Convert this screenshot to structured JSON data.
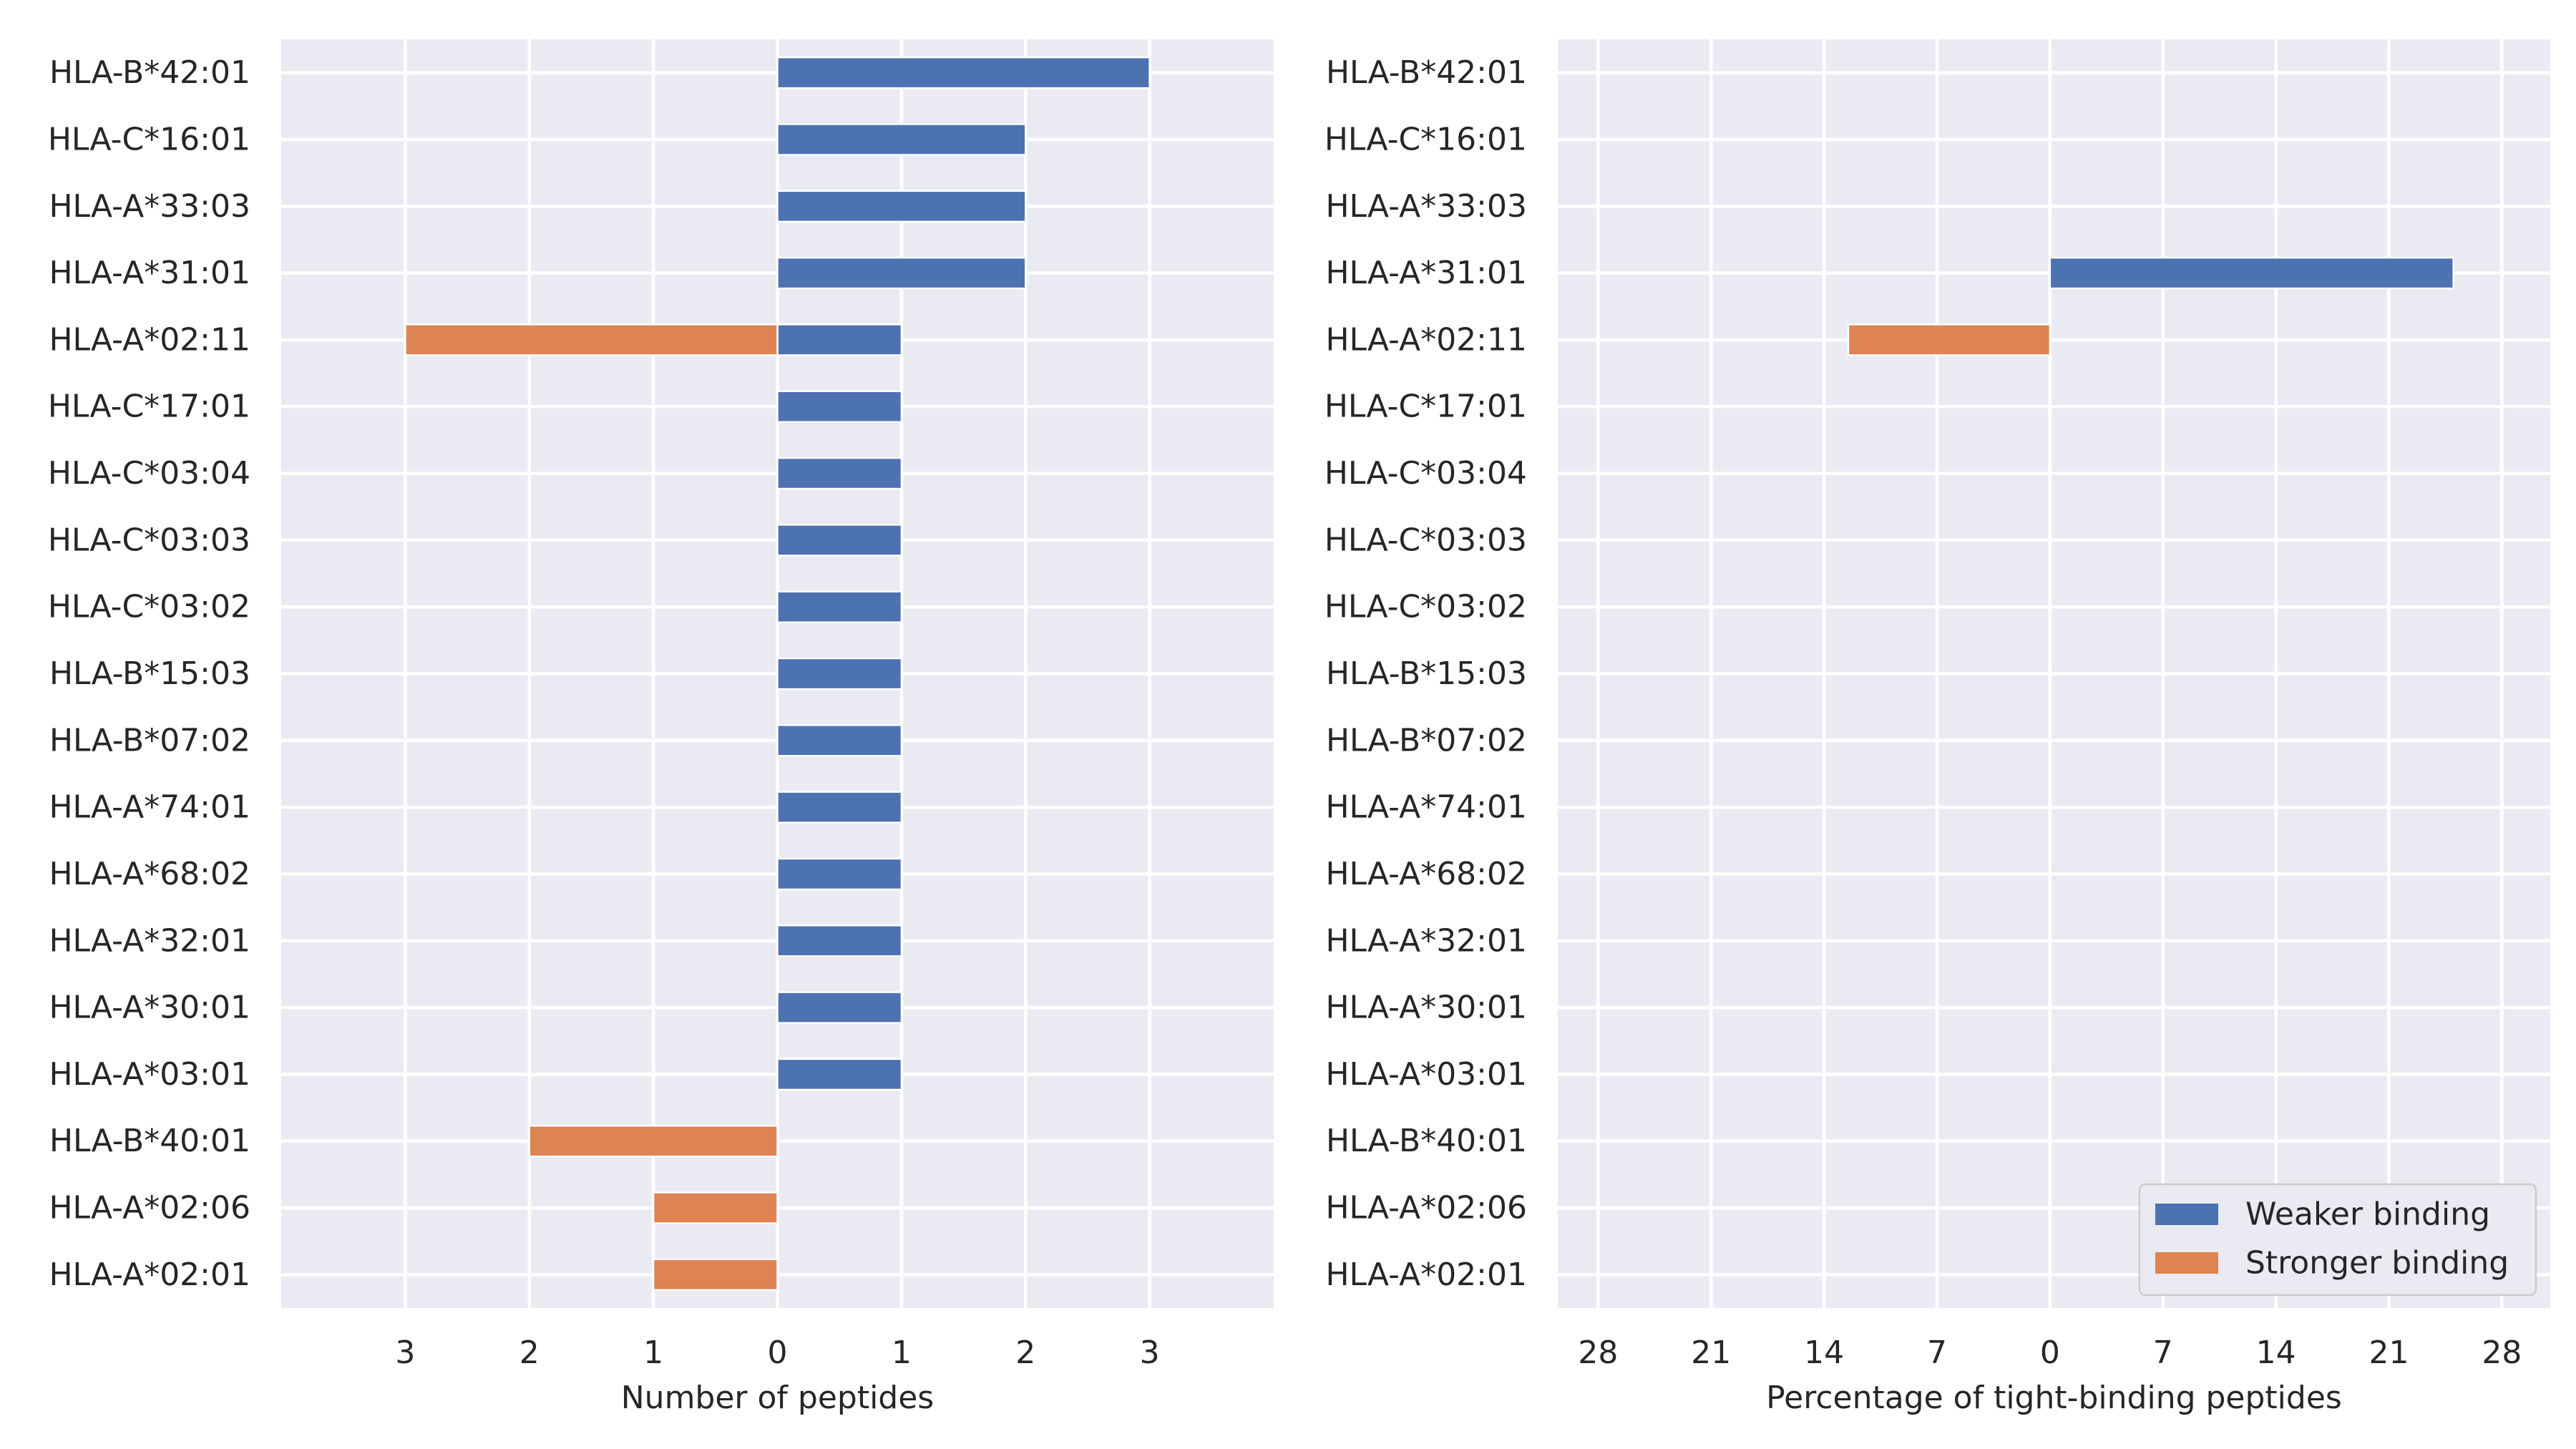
{
  "chart_data": [
    {
      "type": "bar",
      "orientation": "horizontal",
      "diverging": true,
      "categories": [
        "HLA-B*42:01",
        "HLA-C*16:01",
        "HLA-A*33:03",
        "HLA-A*31:01",
        "HLA-A*02:11",
        "HLA-C*17:01",
        "HLA-C*03:04",
        "HLA-C*03:03",
        "HLA-C*03:02",
        "HLA-B*15:03",
        "HLA-B*07:02",
        "HLA-A*74:01",
        "HLA-A*68:02",
        "HLA-A*32:01",
        "HLA-A*30:01",
        "HLA-A*03:01",
        "HLA-B*40:01",
        "HLA-A*02:06",
        "HLA-A*02:01"
      ],
      "series": [
        {
          "key": "weaker",
          "direction": "right",
          "values": [
            3,
            2,
            2,
            2,
            1,
            1,
            1,
            1,
            1,
            1,
            1,
            1,
            1,
            1,
            1,
            1,
            0,
            0,
            0
          ]
        },
        {
          "key": "stronger",
          "direction": "left",
          "values": [
            0,
            0,
            0,
            0,
            3,
            0,
            0,
            0,
            0,
            0,
            0,
            0,
            0,
            0,
            0,
            0,
            2,
            1,
            1
          ]
        }
      ],
      "xlim": [
        -4,
        4
      ],
      "xticks": [
        -3,
        -2,
        -1,
        0,
        1,
        2,
        3
      ],
      "xtick_labels": [
        "3",
        "2",
        "1",
        "0",
        "1",
        "2",
        "3"
      ],
      "xlabel": "Number of peptides",
      "ylabel": "",
      "grid": true
    },
    {
      "type": "bar",
      "orientation": "horizontal",
      "diverging": true,
      "categories": [
        "HLA-B*42:01",
        "HLA-C*16:01",
        "HLA-A*33:03",
        "HLA-A*31:01",
        "HLA-A*02:11",
        "HLA-C*17:01",
        "HLA-C*03:04",
        "HLA-C*03:03",
        "HLA-C*03:02",
        "HLA-B*15:03",
        "HLA-B*07:02",
        "HLA-A*74:01",
        "HLA-A*68:02",
        "HLA-A*32:01",
        "HLA-A*30:01",
        "HLA-A*03:01",
        "HLA-B*40:01",
        "HLA-A*02:06",
        "HLA-A*02:01"
      ],
      "series": [
        {
          "name": "Weaker binding",
          "key": "weaker",
          "direction": "right",
          "values": [
            0,
            0,
            0,
            25,
            0,
            0,
            0,
            0,
            0,
            0,
            0,
            0,
            0,
            0,
            0,
            0,
            0,
            0,
            0
          ]
        },
        {
          "name": "Stronger binding",
          "key": "stronger",
          "direction": "left",
          "values": [
            0,
            0,
            0,
            0,
            12.5,
            0,
            0,
            0,
            0,
            0,
            0,
            0,
            0,
            0,
            0,
            0,
            0,
            0,
            0
          ]
        }
      ],
      "xlim": [
        -30.5,
        31
      ],
      "xticks": [
        -28,
        -21,
        -14,
        -7,
        0,
        7,
        14,
        21,
        28
      ],
      "xtick_labels": [
        "28",
        "21",
        "14",
        "7",
        "0",
        "7",
        "14",
        "21",
        "28"
      ],
      "xlabel": "Percentage of tight-binding peptides",
      "ylabel": "",
      "grid": true,
      "legend_position": "bottom-right"
    }
  ],
  "colors": {
    "weaker": "#4c72b0",
    "stronger": "#dd8452"
  }
}
